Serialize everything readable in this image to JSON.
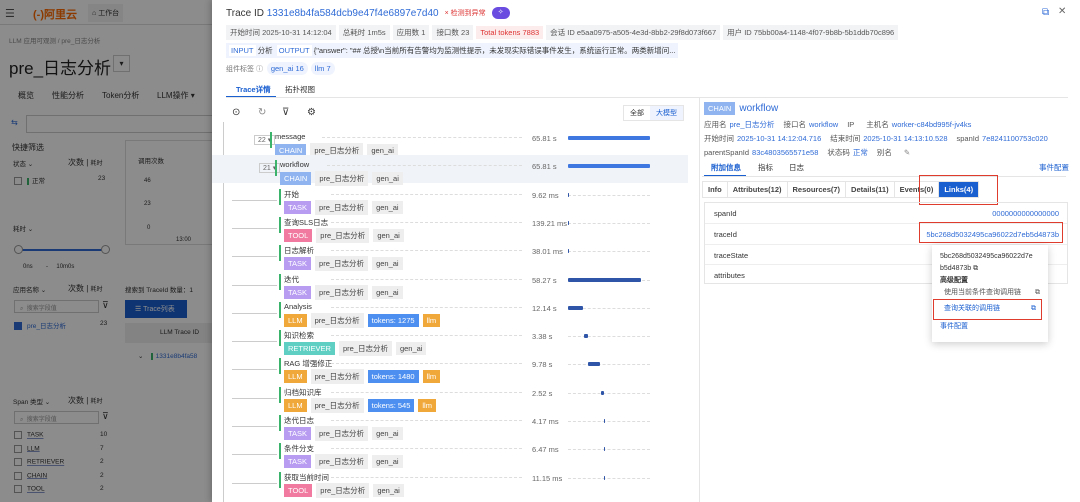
{
  "bg": {
    "logo": "阿里云",
    "workbench": "工作台",
    "breadcrumb": [
      "LLM 应用可观测",
      "pre_日志分析"
    ],
    "title": "pre_日志分析",
    "nav": [
      "概览",
      "性能分析",
      "Token分析",
      "LLM操作"
    ],
    "quick_filter": "快捷筛选",
    "status_label": "状态",
    "count_time": "次数",
    "time": "耗时",
    "status_items": [
      {
        "label": "正常",
        "count": "23"
      }
    ],
    "chart_title": "调用次数",
    "chart_ticks": [
      "46",
      "23",
      "0"
    ],
    "chart_x": "13:00",
    "duration_label": "耗时",
    "slider_min": "0ns",
    "slider_sep": "-",
    "slider_max": "10m0s",
    "app_label": "应用名称",
    "search_placeholder": "搜索字段值",
    "app_items": [
      {
        "label": "pre_日志分析",
        "count": "23"
      }
    ],
    "result_count": "搜索到 TraceId 数量：1",
    "trace_list_btn": "Trace列表",
    "trace_col": "LLM Trace ID",
    "trace_row": "1331e8b4fa58",
    "span_label": "Span 类型",
    "span_items": [
      {
        "label": "TASK",
        "count": "10"
      },
      {
        "label": "LLM",
        "count": "7"
      },
      {
        "label": "RETRIEVER",
        "count": "2"
      },
      {
        "label": "CHAIN",
        "count": "2"
      },
      {
        "label": "TOOL",
        "count": "2"
      }
    ]
  },
  "header": {
    "label": "Trace ID",
    "trace_id": "1331e8b4fa584dcb9e47f4e6897e7d40",
    "anomaly": "检测到异常",
    "meta": [
      "开始时间 2025-10-31 14:12:04",
      "总耗时 1m5s",
      "应用数 1",
      "接口数 23"
    ],
    "tokens": "Total tokens 7883",
    "session": "会话 ID e5aa0975-a505-4e3d-8bb2-29f8d073f667",
    "user": "用户 ID 75bb00a4-1148-4f07-9b8b-5b1ddb70c896",
    "input_label": "INPUT",
    "input": "分析",
    "output_label": "OUTPUT",
    "output": "{\"answer\": \"## 总授\\n当前所有告警均为监测性提示，未发现实际错误事件发生，系统运行正常。两类新增问...",
    "tag_label": "组件标签",
    "tags": [
      "gen_ai 16",
      "llm 7"
    ],
    "tabs": [
      "Trace详情",
      "拓扑视图"
    ]
  },
  "tree": {
    "view_all": "全部",
    "view_llm": "大模型",
    "spans": [
      {
        "name": "message",
        "count": "22",
        "type": "CHAIN",
        "tags": [
          "pre_日志分析",
          "gen_ai"
        ],
        "dur": "65.81 s"
      },
      {
        "name": "workflow",
        "count": "21",
        "type": "CHAIN",
        "tags": [
          "pre_日志分析",
          "gen_ai"
        ],
        "dur": "65.81 s"
      },
      {
        "name": "开始",
        "type": "TASK",
        "tags": [
          "pre_日志分析",
          "gen_ai"
        ],
        "dur": "9.62 ms"
      },
      {
        "name": "查询SLS日志",
        "type": "TOOL",
        "tags": [
          "pre_日志分析",
          "gen_ai"
        ],
        "dur": "139.21 ms"
      },
      {
        "name": "日志解析",
        "type": "TASK",
        "tags": [
          "pre_日志分析",
          "gen_ai"
        ],
        "dur": "38.01 ms"
      },
      {
        "name": "迭代",
        "type": "TASK",
        "tags": [
          "pre_日志分析",
          "gen_ai"
        ],
        "dur": "58.27 s"
      },
      {
        "name": "Analysis",
        "type": "LLM",
        "tags": [
          "pre_日志分析"
        ],
        "tokens": "tokens: 1275",
        "extra": "llm",
        "dur": "12.14 s"
      },
      {
        "name": "知识检索",
        "type": "RETRIEVER",
        "tags": [
          "pre_日志分析",
          "gen_ai"
        ],
        "dur": "3.38 s"
      },
      {
        "name": "RAG 增强修正",
        "type": "LLM",
        "tags": [
          "pre_日志分析"
        ],
        "tokens": "tokens: 1480",
        "extra": "llm",
        "dur": "9.78 s"
      },
      {
        "name": "归档知识库",
        "type": "LLM",
        "tags": [
          "pre_日志分析"
        ],
        "tokens": "tokens: 545",
        "extra": "llm",
        "dur": "2.52 s"
      },
      {
        "name": "迭代日志",
        "type": "TASK",
        "tags": [
          "pre_日志分析",
          "gen_ai"
        ],
        "dur": "4.17 ms"
      },
      {
        "name": "条件分支",
        "type": "TASK",
        "tags": [
          "pre_日志分析",
          "gen_ai"
        ],
        "dur": "6.47 ms"
      },
      {
        "name": "获取当前时间",
        "type": "TOOL",
        "tags": [
          "pre_日志分析",
          "gen_ai"
        ],
        "dur": "11.15 ms"
      }
    ],
    "type_colors": {
      "CHAIN": "#8fb4f0",
      "TASK": "#b79cf2",
      "TOOL": "#f07aa0",
      "LLM": "#f0a83a",
      "RETRIEVER": "#5fcfc4"
    }
  },
  "detail": {
    "type": "CHAIN",
    "name": "workflow",
    "info": [
      [
        [
          "应用名",
          "pre_日志分析"
        ],
        [
          "接口名",
          "workflow"
        ],
        [
          "IP",
          ""
        ],
        [
          "主机名",
          "worker-c84bd995f-jv4ks"
        ]
      ],
      [
        [
          "开始时间",
          "2025-10-31 14:12:04.716"
        ],
        [
          "结束时间",
          "2025-10-31 14:13:10.528"
        ],
        [
          "spanId",
          "7e8241100753c020"
        ]
      ],
      [
        [
          "parentSpanId",
          "83c4803565571e58"
        ],
        [
          "状态码",
          "正常"
        ],
        [
          "别名",
          ""
        ]
      ]
    ],
    "tabs": [
      "附加信息",
      "指标",
      "日志"
    ],
    "event_config": "事件配置",
    "subtabs": [
      "Info",
      "Attributes(12)",
      "Resources(7)",
      "Details(11)",
      "Events(0)",
      "Links(4)"
    ],
    "rows": [
      {
        "k": "spanId",
        "v": "0000000000000000"
      },
      {
        "k": "traceId",
        "v": "5bc268d5032495ca96022d7eb5d4873b"
      },
      {
        "k": "traceState",
        "v": ""
      },
      {
        "k": "attributes",
        "v": ""
      }
    ],
    "popover": {
      "line1": "5bc268d5032495ca96022d7e",
      "line2": "b5d4873b",
      "advanced": "高级配置",
      "query_current": "使用当前条件查询调用链",
      "query_linked": "查询关联的调用链",
      "event_config": "事件配置"
    }
  }
}
